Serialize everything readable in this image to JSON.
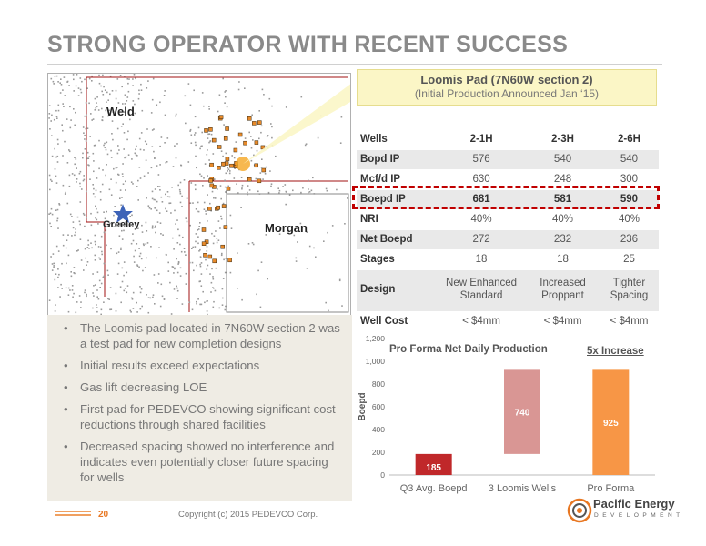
{
  "slide": {
    "title": "STRONG OPERATOR WITH RECENT SUCCESS",
    "page_number": "20",
    "copyright": "Copyright (c) 2015 PEDEVCO Corp."
  },
  "map": {
    "labels": {
      "weld": "Weld",
      "morgan": "Morgan",
      "greeley": "Greeley"
    },
    "colors": {
      "wells": "#e88a2a",
      "highlight": "#f5a623",
      "star": "#3d63b8",
      "boundary": "#a01010"
    }
  },
  "callout": {
    "title": "Loomis Pad (7N60W section 2)",
    "subtitle": "(Initial Production Announced Jan ‘15)"
  },
  "well_table": {
    "header": {
      "label": "Wells",
      "cols": [
        "2-1H",
        "2-3H",
        "2-6H"
      ]
    },
    "rows": [
      {
        "label": "Bopd IP",
        "values": [
          "576",
          "540",
          "540"
        ]
      },
      {
        "label": "Mcf/d IP",
        "values": [
          "630",
          "248",
          "300"
        ]
      },
      {
        "label": "Boepd IP",
        "values": [
          "681",
          "581",
          "590"
        ]
      },
      {
        "label": "NRI",
        "values": [
          "40%",
          "40%",
          "40%"
        ]
      },
      {
        "label": "Net Boepd",
        "values": [
          "272",
          "232",
          "236"
        ]
      },
      {
        "label": "Stages",
        "values": [
          "18",
          "18",
          "25"
        ]
      },
      {
        "label": "Design",
        "values": [
          "New Enhanced Standard",
          "Increased Proppant",
          "Tighter Spacing"
        ]
      },
      {
        "label": "Well Cost",
        "values": [
          "< $4mm",
          "< $4mm",
          "< $4mm"
        ]
      }
    ],
    "highlight_color": "#c00000"
  },
  "bullets": [
    "The Loomis pad located in 7N60W section 2 was a test pad for new completion designs",
    "Initial results exceed expectations",
    "Gas lift decreasing LOE",
    "First pad for PEDEVCO showing significant cost reductions through shared facilities",
    "Decreased spacing showed no interference and indicates even potentially closer future spacing for wells"
  ],
  "chart_data": {
    "type": "bar",
    "title": "Pro Forma Net Daily Production",
    "annotation": "5x Increase",
    "ylabel": "Boepd",
    "ylim": [
      0,
      1200
    ],
    "yticks": [
      "0",
      "200",
      "400",
      "600",
      "800",
      "1,000",
      "1,200"
    ],
    "categories": [
      "Q3 Avg. Boepd",
      "3 Loomis Wells",
      "Pro Forma"
    ],
    "bars": [
      {
        "category": "Q3 Avg. Boepd",
        "base": 0,
        "value": 185,
        "label": "185",
        "color": "#c0282a"
      },
      {
        "category": "3 Loomis Wells",
        "base": 185,
        "value": 740,
        "label": "740",
        "color": "#d99694"
      },
      {
        "category": "Pro Forma",
        "base": 0,
        "value": 925,
        "label": "925",
        "color": "#f79646"
      }
    ]
  },
  "logo": {
    "name": "Pacific Energy",
    "sub": "DEVELOPMENT",
    "colors": {
      "accent": "#e87722"
    }
  }
}
